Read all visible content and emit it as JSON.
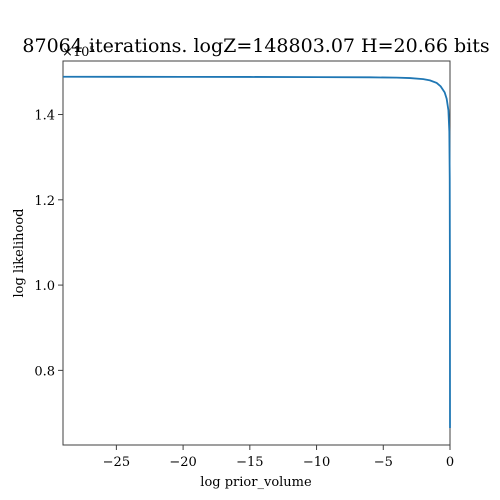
{
  "chart_data": {
    "type": "line",
    "title": "87064 iterations. logZ=148803.07 H=20.66 bits",
    "xlabel": "log prior_volume",
    "ylabel": "log likelihood",
    "offset_text": "×10⁵",
    "xlim": [
      -29,
      0
    ],
    "ylim": [
      0.625,
      1.5255
    ],
    "xticks": [
      -25,
      -20,
      -15,
      -10,
      -5,
      0
    ],
    "xtick_labels": [
      "−25",
      "−20",
      "−15",
      "−10",
      "−5",
      "0"
    ],
    "yticks": [
      0.8,
      1.0,
      1.2,
      1.4
    ],
    "ytick_labels": [
      "0.8",
      "1.0",
      "1.2",
      "1.4"
    ],
    "grid": false,
    "line_color": "#1f77b4",
    "series": [
      {
        "x": [
          -29,
          -25,
          -20,
          -15,
          -10,
          -6,
          -4,
          -3,
          -2,
          -1.5,
          -1,
          -0.7,
          -0.4,
          -0.25,
          -0.12,
          -0.05,
          -0.02,
          -0.008,
          -0.002,
          0
        ],
        "y": [
          1.4885,
          1.4884,
          1.4883,
          1.4881,
          1.4877,
          1.4872,
          1.4865,
          1.4855,
          1.483,
          1.48,
          1.474,
          1.466,
          1.452,
          1.437,
          1.41,
          1.36,
          1.25,
          1.05,
          0.8,
          0.665
        ]
      }
    ]
  }
}
